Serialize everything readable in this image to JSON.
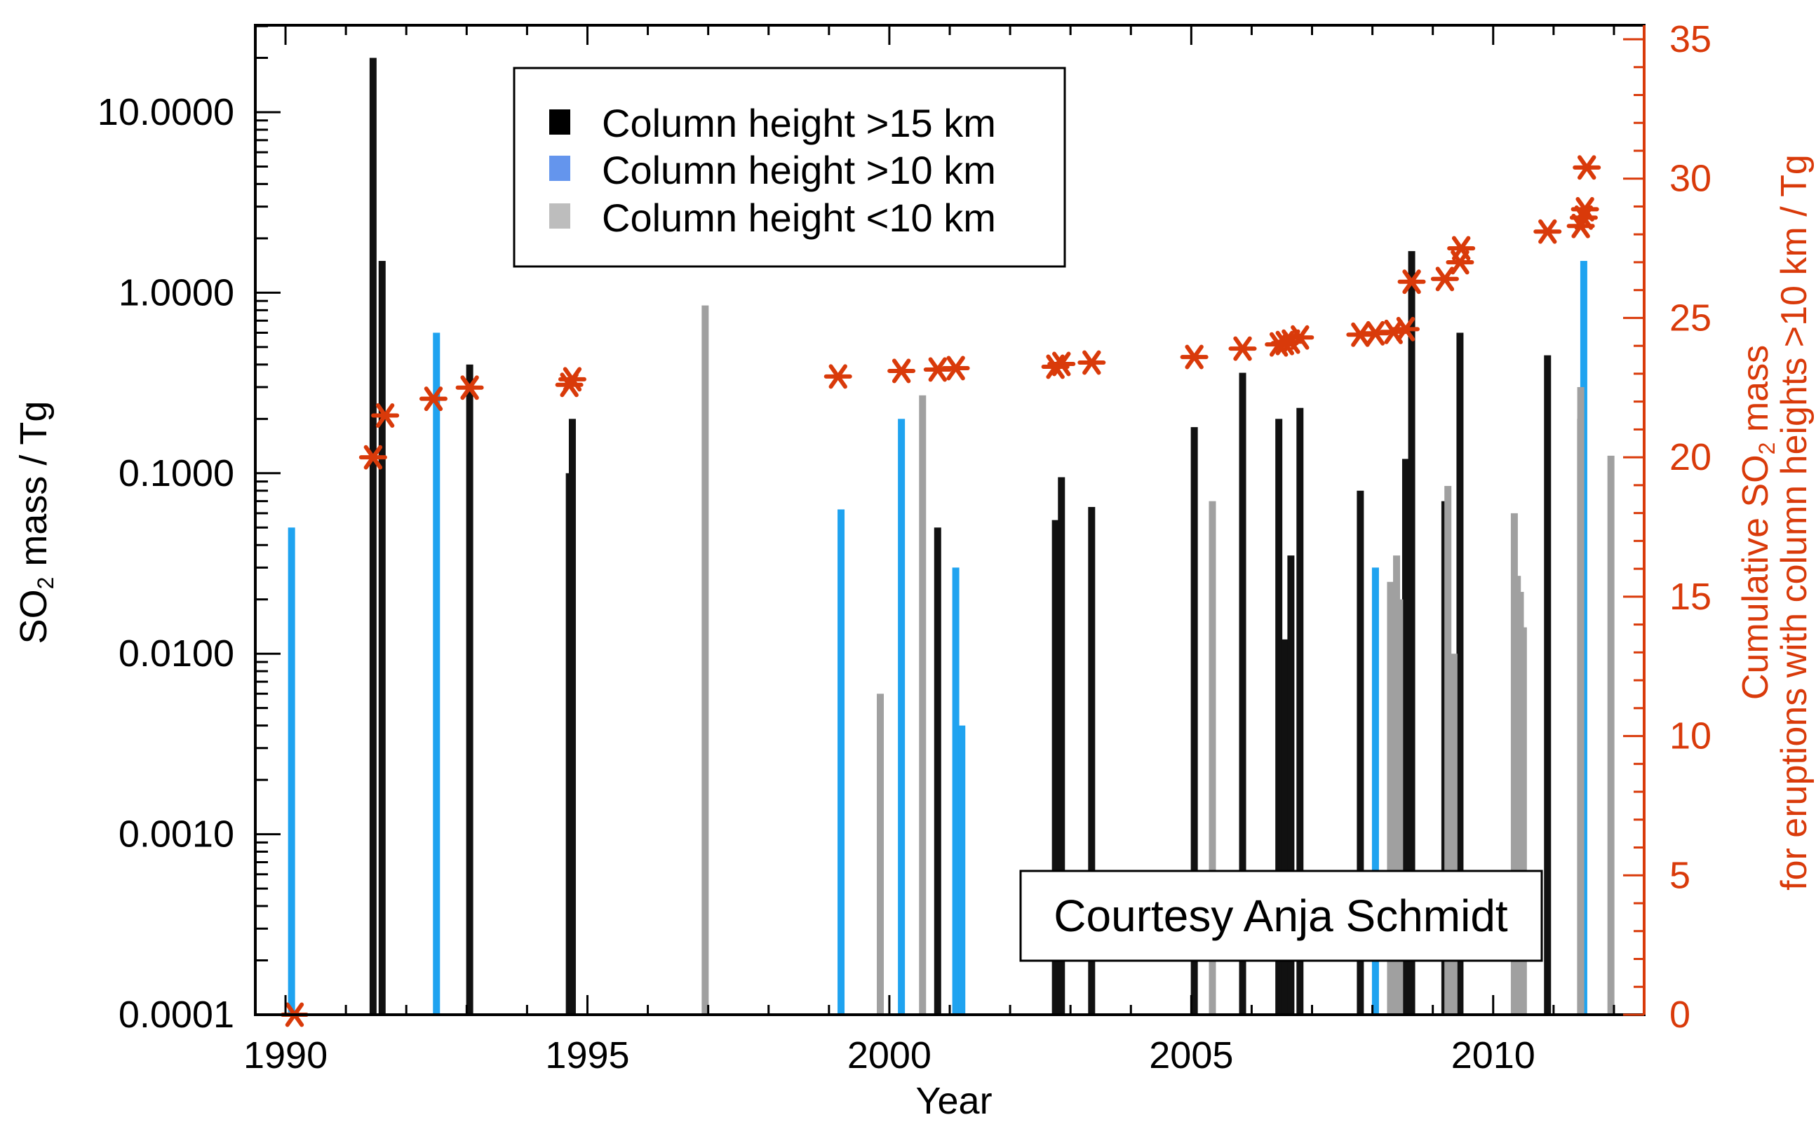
{
  "chart_data": {
    "type": "bar",
    "xlabel": "Year",
    "ylabel": "SO",
    "ylabel_sub": "2",
    "ylabel_rest": " mass / Tg",
    "y2label_line1_pre": "Cumulative SO",
    "y2label_line1_sub": "2",
    "y2label_line1_post": " mass",
    "y2label_line2": "for eruptions with column heights >10 km  / Tg",
    "xlim": [
      1989.5,
      2012.5
    ],
    "ylim": [
      0.0001,
      30
    ],
    "y_scale": "log",
    "y2lim": [
      0,
      35
    ],
    "x_ticks": [
      "1990",
      "1995",
      "2000",
      "2005",
      "2010"
    ],
    "y_ticks": [
      "10.0000",
      "1.0000",
      "0.1000",
      "0.0100",
      "0.0010",
      "0.0001"
    ],
    "y2_ticks": [
      "0",
      "5",
      "10",
      "15",
      "20",
      "25",
      "30",
      "35"
    ],
    "legend": {
      "position": "top-center",
      "entries": [
        {
          "label": "Column height >15 km",
          "color": "#000000"
        },
        {
          "label": "Column height >10 km",
          "color": "#6495ed"
        },
        {
          "label": "Column height <10 km",
          "color": "#bdbdbd"
        }
      ]
    },
    "annotation": "Courtesy Anja Schmidt",
    "colors": {
      "high": "#111111",
      "mid": "#1fa3f0",
      "low": "#a0a0a0",
      "cumulative": "#d93a0a"
    },
    "series": [
      {
        "category": "high",
        "points": [
          [
            1991.45,
            20
          ],
          [
            1991.6,
            1.5
          ],
          [
            1993.05,
            0.4
          ],
          [
            1994.7,
            0.1
          ],
          [
            1994.75,
            0.2
          ],
          [
            2000.8,
            0.05
          ],
          [
            2002.75,
            0.055
          ],
          [
            2002.85,
            0.095
          ],
          [
            2003.35,
            0.065
          ],
          [
            2005.05,
            0.18
          ],
          [
            2005.85,
            0.36
          ],
          [
            2006.45,
            0.2
          ],
          [
            2006.55,
            0.012
          ],
          [
            2006.65,
            0.035
          ],
          [
            2006.8,
            0.23
          ],
          [
            2007.8,
            0.08
          ],
          [
            2008.35,
            0.01
          ],
          [
            2008.55,
            0.12
          ],
          [
            2008.65,
            1.7
          ],
          [
            2009.2,
            0.07
          ],
          [
            2009.45,
            0.6
          ],
          [
            2010.9,
            0.45
          ],
          [
            2011.45,
            0.2
          ]
        ]
      },
      {
        "category": "mid",
        "points": [
          [
            1990.1,
            0.05
          ],
          [
            1992.5,
            0.6
          ],
          [
            1999.2,
            0.063
          ],
          [
            2000.2,
            0.2
          ],
          [
            2001.1,
            0.03
          ],
          [
            2001.2,
            0.004
          ],
          [
            2008.05,
            0.03
          ],
          [
            2011.5,
            1.5
          ]
        ]
      },
      {
        "category": "low",
        "points": [
          [
            1996.95,
            0.85
          ],
          [
            1999.85,
            0.006
          ],
          [
            2000.55,
            0.27
          ],
          [
            2005.35,
            0.07
          ],
          [
            2008.3,
            0.025
          ],
          [
            2008.4,
            0.035
          ],
          [
            2008.45,
            0.02
          ],
          [
            2009.25,
            0.085
          ],
          [
            2009.35,
            0.01
          ],
          [
            2010.35,
            0.06
          ],
          [
            2010.4,
            0.027
          ],
          [
            2010.45,
            0.022
          ],
          [
            2010.5,
            0.014
          ],
          [
            2011.45,
            0.3
          ],
          [
            2011.95,
            0.125
          ]
        ]
      }
    ],
    "cumulative": [
      [
        1990.15,
        0.0
      ],
      [
        1991.45,
        20.0
      ],
      [
        1991.65,
        21.5
      ],
      [
        1992.45,
        22.1
      ],
      [
        1993.05,
        22.5
      ],
      [
        1994.7,
        22.6
      ],
      [
        1994.75,
        22.8
      ],
      [
        1999.15,
        22.9
      ],
      [
        2000.2,
        23.1
      ],
      [
        2000.8,
        23.15
      ],
      [
        2001.1,
        23.2
      ],
      [
        2002.75,
        23.25
      ],
      [
        2002.85,
        23.35
      ],
      [
        2003.35,
        23.4
      ],
      [
        2005.05,
        23.6
      ],
      [
        2005.85,
        23.9
      ],
      [
        2006.45,
        24.05
      ],
      [
        2006.55,
        24.1
      ],
      [
        2006.65,
        24.15
      ],
      [
        2006.8,
        24.3
      ],
      [
        2007.8,
        24.4
      ],
      [
        2008.05,
        24.45
      ],
      [
        2008.35,
        24.5
      ],
      [
        2008.55,
        24.6
      ],
      [
        2008.65,
        26.3
      ],
      [
        2009.2,
        26.4
      ],
      [
        2009.45,
        27.0
      ],
      [
        2009.47,
        27.5
      ],
      [
        2010.9,
        28.1
      ],
      [
        2011.45,
        28.3
      ],
      [
        2011.5,
        28.6
      ],
      [
        2011.52,
        28.9
      ],
      [
        2011.55,
        30.4
      ]
    ]
  }
}
